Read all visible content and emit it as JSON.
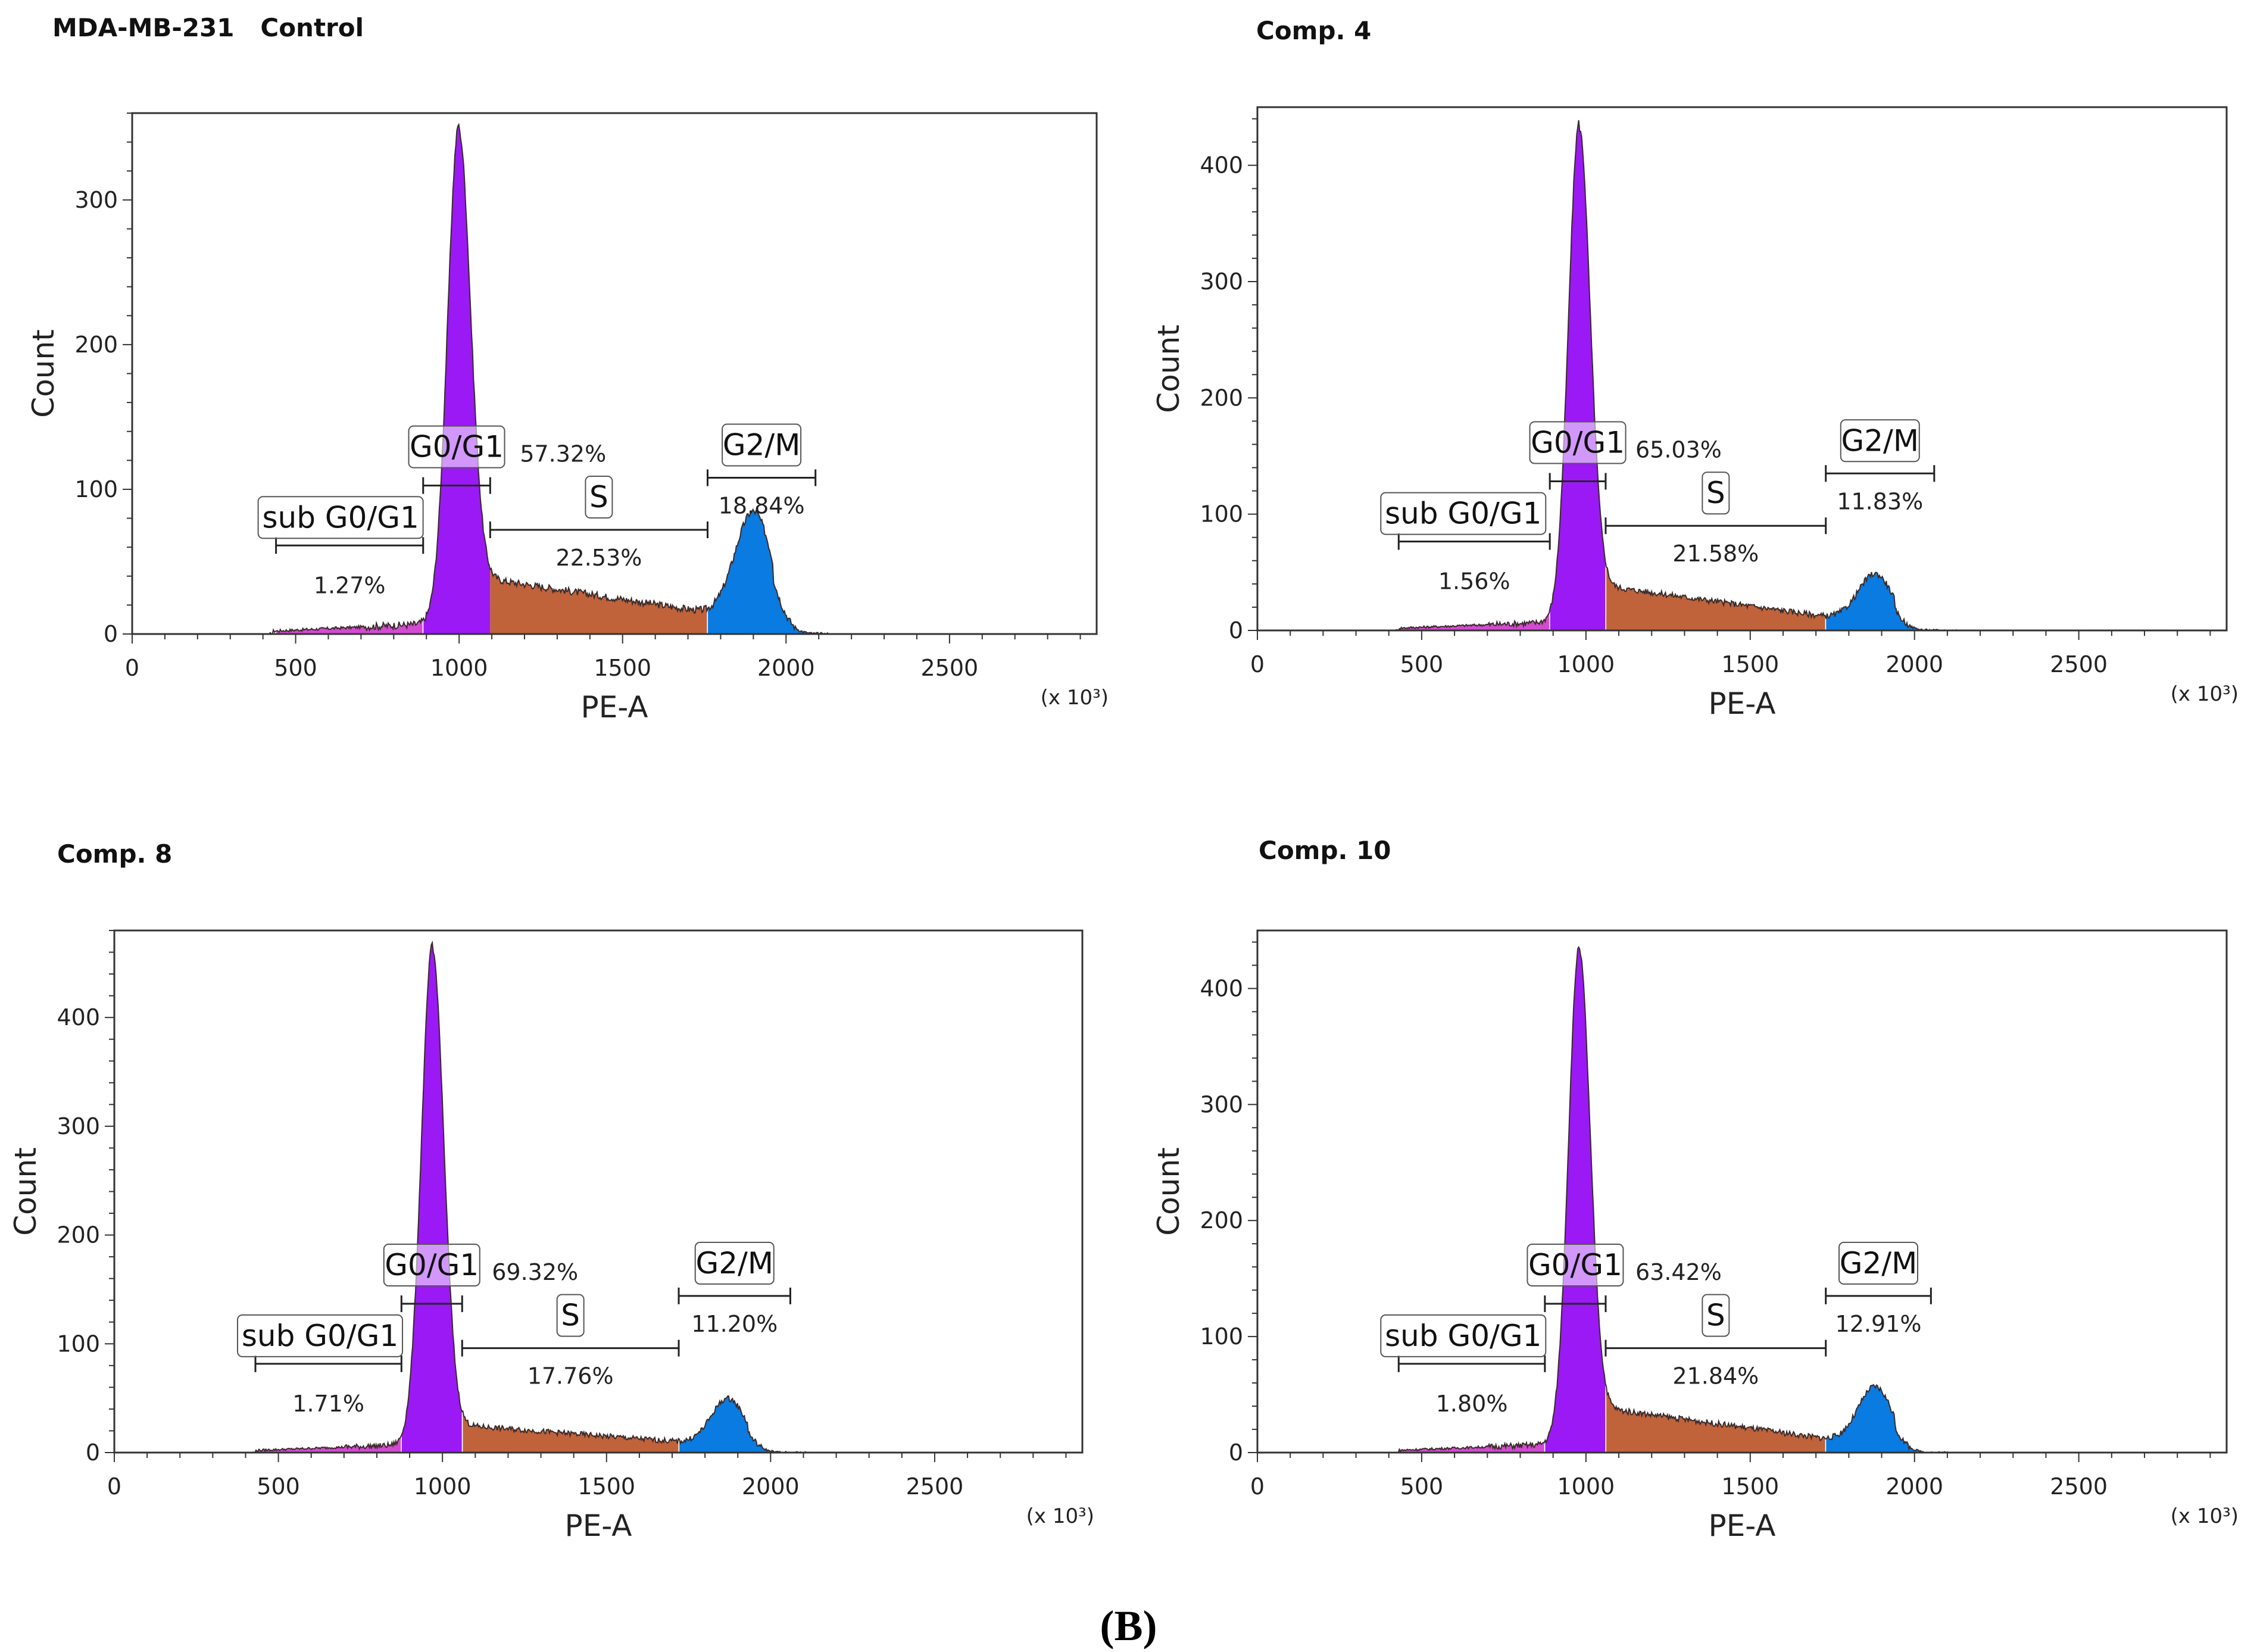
{
  "figure_label": "(B)",
  "chart_data": [
    {
      "type": "area",
      "title": "MDA-MB-231   Control",
      "xlabel": "PE-A",
      "ylabel": "Count",
      "x_unit_label": "(x 10³)",
      "xlim": [
        0,
        2950
      ],
      "ylim": [
        0,
        360
      ],
      "xticks": [
        0,
        500,
        1000,
        1500,
        2000,
        2500
      ],
      "yticks": [
        0,
        100,
        200,
        300
      ],
      "grid": false,
      "phase_colors": {
        "sub G0/G1": "#d24bd2",
        "G0/G1": "#9b19f5",
        "S": "#c0633b",
        "G2/M": "#0a7be0"
      },
      "peaks": {
        "g1_pos": 1000,
        "g1_height": 345,
        "g1_width": 35,
        "g2_pos": 1900,
        "g2_height": 70,
        "g2_width": 55,
        "s_start_level": 38,
        "s_end_level": 15
      },
      "phases": [
        {
          "name": "sub G0/G1",
          "percent": "1.27%",
          "x_range": [
            440,
            890
          ]
        },
        {
          "name": "G0/G1",
          "percent": "57.32%",
          "x_range": [
            890,
            1095
          ]
        },
        {
          "name": "S",
          "percent": "22.53%",
          "x_range": [
            1095,
            1760
          ]
        },
        {
          "name": "G2/M",
          "percent": "18.84%",
          "x_range": [
            1760,
            2090
          ]
        }
      ]
    },
    {
      "type": "area",
      "title": "Comp. 4",
      "xlabel": "PE-A",
      "ylabel": "Count",
      "x_unit_label": "(x 10³)",
      "xlim": [
        0,
        2950
      ],
      "ylim": [
        0,
        450
      ],
      "xticks": [
        0,
        500,
        1000,
        1500,
        2000,
        2500
      ],
      "yticks": [
        0,
        100,
        200,
        300,
        400
      ],
      "grid": false,
      "phase_colors": {
        "sub G0/G1": "#d24bd2",
        "G0/G1": "#9b19f5",
        "S": "#c0633b",
        "G2/M": "#0a7be0"
      },
      "peaks": {
        "g1_pos": 980,
        "g1_height": 430,
        "g1_width": 33,
        "g2_pos": 1880,
        "g2_height": 37,
        "g2_width": 50,
        "s_start_level": 38,
        "s_end_level": 12
      },
      "phases": [
        {
          "name": "sub G0/G1",
          "percent": "1.56%",
          "x_range": [
            430,
            890
          ]
        },
        {
          "name": "G0/G1",
          "percent": "65.03%",
          "x_range": [
            890,
            1060
          ]
        },
        {
          "name": "S",
          "percent": "21.58%",
          "x_range": [
            1060,
            1730
          ]
        },
        {
          "name": "G2/M",
          "percent": "11.83%",
          "x_range": [
            1730,
            2060
          ]
        }
      ]
    },
    {
      "type": "area",
      "title": "Comp. 8",
      "xlabel": "PE-A",
      "ylabel": "Count",
      "x_unit_label": "(x 10³)",
      "xlim": [
        0,
        2950
      ],
      "ylim": [
        0,
        480
      ],
      "xticks": [
        0,
        500,
        1000,
        1500,
        2000,
        2500
      ],
      "yticks": [
        0,
        100,
        200,
        300,
        400
      ],
      "grid": false,
      "phase_colors": {
        "sub G0/G1": "#d24bd2",
        "G0/G1": "#9b19f5",
        "S": "#c0633b",
        "G2/M": "#0a7be0"
      },
      "peaks": {
        "g1_pos": 970,
        "g1_height": 460,
        "g1_width": 34,
        "g2_pos": 1870,
        "g2_height": 40,
        "g2_width": 50,
        "s_start_level": 25,
        "s_end_level": 10
      },
      "phases": [
        {
          "name": "sub G0/G1",
          "percent": "1.71%",
          "x_range": [
            430,
            875
          ]
        },
        {
          "name": "G0/G1",
          "percent": "69.32%",
          "x_range": [
            875,
            1060
          ]
        },
        {
          "name": "S",
          "percent": "17.76%",
          "x_range": [
            1060,
            1720
          ]
        },
        {
          "name": "G2/M",
          "percent": "11.20%",
          "x_range": [
            1720,
            2060
          ]
        }
      ]
    },
    {
      "type": "area",
      "title": "Comp. 10",
      "xlabel": "PE-A",
      "ylabel": "Count",
      "x_unit_label": "(x 10³)",
      "xlim": [
        0,
        2950
      ],
      "ylim": [
        0,
        450
      ],
      "xticks": [
        0,
        500,
        1000,
        1500,
        2000,
        2500
      ],
      "yticks": [
        0,
        100,
        200,
        300,
        400
      ],
      "grid": false,
      "phase_colors": {
        "sub G0/G1": "#d24bd2",
        "G0/G1": "#9b19f5",
        "S": "#c0633b",
        "G2/M": "#0a7be0"
      },
      "peaks": {
        "g1_pos": 980,
        "g1_height": 430,
        "g1_width": 33,
        "g2_pos": 1880,
        "g2_height": 45,
        "g2_width": 50,
        "s_start_level": 38,
        "s_end_level": 12
      },
      "phases": [
        {
          "name": "sub G0/G1",
          "percent": "1.80%",
          "x_range": [
            430,
            875
          ]
        },
        {
          "name": "G0/G1",
          "percent": "63.42%",
          "x_range": [
            875,
            1060
          ]
        },
        {
          "name": "S",
          "percent": "21.84%",
          "x_range": [
            1060,
            1730
          ]
        },
        {
          "name": "G2/M",
          "percent": "12.91%",
          "x_range": [
            1730,
            2050
          ]
        }
      ]
    }
  ]
}
